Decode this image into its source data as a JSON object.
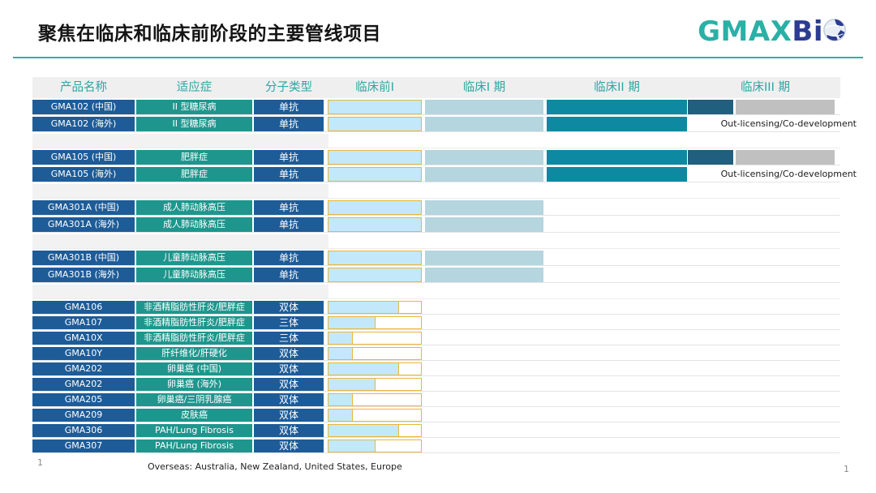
{
  "slide": {
    "title": "聚焦在临床和临床前阶段的主要管线项目",
    "footnote": "Overseas:  Australia, New Zealand,  United States, Europe",
    "page_number_left": "1",
    "page_number_right": "1"
  },
  "logo": {
    "part1": "GMAX",
    "part2": "Bi",
    "icon": "globe-icon"
  },
  "colors": {
    "accent_teal_rule": "#2bb3a9",
    "header_text": "#2aa7a4",
    "navy_cell": "#1e5c98",
    "teal_cell": "#1e968d",
    "preclinical_fill": "#c3e8fa",
    "gold_border": "#e9b63b",
    "phase1_bar": "#b5d5df",
    "phase2_bar": "#0d89a1",
    "phase3_bar": "#205f7e",
    "future_gray": "#c0c0c0"
  },
  "chart_data": {
    "type": "table",
    "title": "聚焦在临床和临床前阶段的主要管线项目",
    "columns": [
      "产品名称",
      "适应症",
      "分子类型",
      "临床前I",
      "临床I 期",
      "临床II 期",
      "临床III 期"
    ],
    "out_licensing_label": "Out-licensing/Co-development",
    "stage_legend": {
      "phase3-partial": "完成临床前/I期/II期，III期进行中（深蓝段），余下灰色",
      "out-licensing": "完成临床前/I期/II期，III期为 Out-licensing/Co-development",
      "phase1": "完成临床前与临床I期",
      "preclinical": "临床前进行中，fill 为完成比例"
    },
    "groups": [
      {
        "rows": [
          {
            "product": "GMA102 (中国)",
            "indication": "II 型糖尿病",
            "molecule": "单抗",
            "stage": "phase3-partial"
          },
          {
            "product": "GMA102 (海外)",
            "indication": "II 型糖尿病",
            "molecule": "单抗",
            "stage": "out-licensing"
          }
        ]
      },
      {
        "rows": [
          {
            "product": "GMA105 (中国)",
            "indication": "肥胖症",
            "molecule": "单抗",
            "stage": "phase3-partial"
          },
          {
            "product": "GMA105 (海外)",
            "indication": "肥胖症",
            "molecule": "单抗",
            "stage": "out-licensing"
          }
        ]
      },
      {
        "rows": [
          {
            "product": "GMA301A (中国)",
            "indication": "成人肺动脉高压",
            "molecule": "单抗",
            "stage": "phase1"
          },
          {
            "product": "GMA301A (海外)",
            "indication": "成人肺动脉高压",
            "molecule": "单抗",
            "stage": "phase1"
          }
        ]
      },
      {
        "rows": [
          {
            "product": "GMA301B (中国)",
            "indication": "儿童肺动脉高压",
            "molecule": "单抗",
            "stage": "phase1"
          },
          {
            "product": "GMA301B (海外)",
            "indication": "儿童肺动脉高压",
            "molecule": "单抗",
            "stage": "phase1"
          }
        ]
      },
      {
        "rows": [
          {
            "product": "GMA106",
            "indication": "非酒精脂肪性肝炎/肥胖症",
            "molecule": "双体",
            "stage": "preclinical",
            "fill": 0.75
          },
          {
            "product": "GMA107",
            "indication": "非酒精脂肪性肝炎/肥胖症",
            "molecule": "三体",
            "stage": "preclinical",
            "fill": 0.5
          },
          {
            "product": "GMA10X",
            "indication": "非酒精脂肪性肝炎/肥胖症",
            "molecule": "三体",
            "stage": "preclinical",
            "fill": 0.25
          },
          {
            "product": "GMA10Y",
            "indication": "肝纤维化/肝硬化",
            "molecule": "双体",
            "stage": "preclinical",
            "fill": 0.25
          },
          {
            "product": "GMA202",
            "indication": "卵巢癌 (中国)",
            "molecule": "双体",
            "stage": "preclinical",
            "fill": 0.75
          },
          {
            "product": "GMA202",
            "indication": "卵巢癌 (海外)",
            "molecule": "双体",
            "stage": "preclinical",
            "fill": 0.5
          },
          {
            "product": "GMA205",
            "indication": "卵巢癌/三阴乳腺癌",
            "molecule": "双体",
            "stage": "preclinical",
            "fill": 0.25
          },
          {
            "product": "GMA209",
            "indication": "皮肤癌",
            "molecule": "双体",
            "stage": "preclinical",
            "fill": 0.25
          },
          {
            "product": "GMA306",
            "indication": "PAH/Lung Fibrosis",
            "molecule": "双体",
            "stage": "preclinical",
            "fill": 0.75
          },
          {
            "product": "GMA307",
            "indication": "PAH/Lung Fibrosis",
            "molecule": "双体",
            "stage": "preclinical",
            "fill": 0.5
          }
        ]
      }
    ]
  }
}
